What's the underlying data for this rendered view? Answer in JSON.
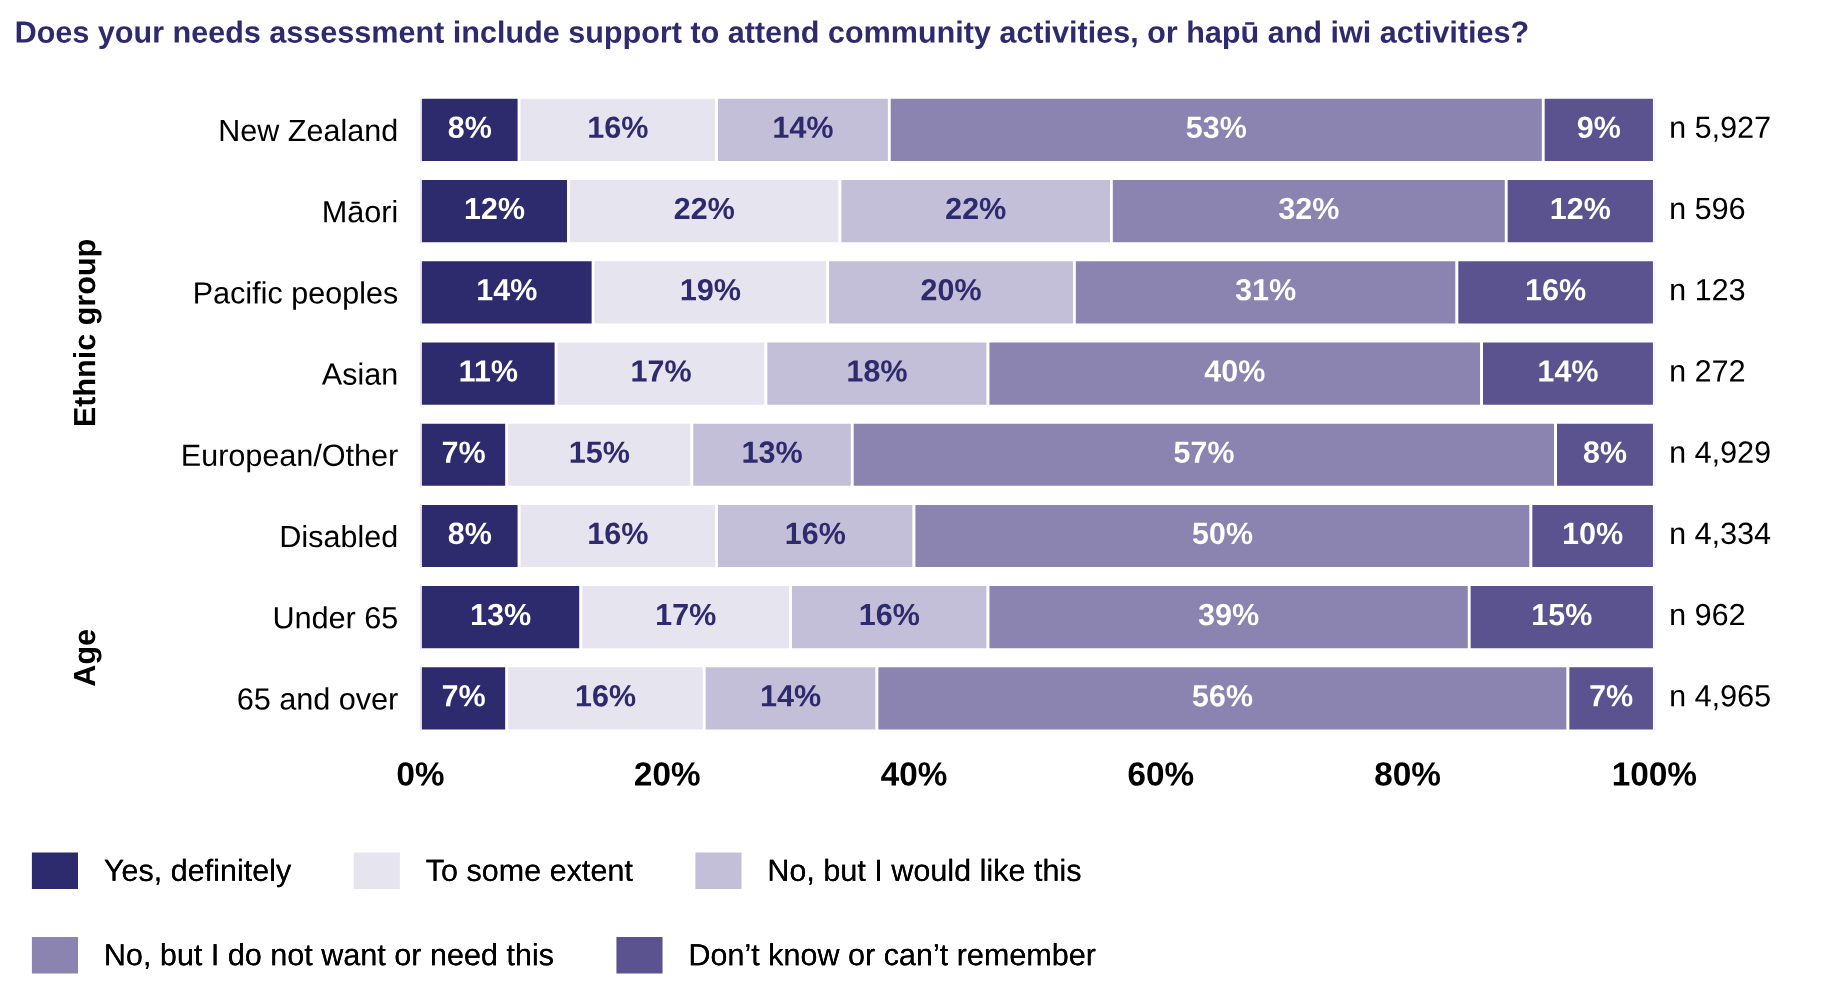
{
  "chart_data": {
    "type": "bar",
    "orientation": "horizontal",
    "stacked": true,
    "title": "Does your needs assessment include support to attend community activities, or hapū and iwi activities?",
    "categories": [
      "New Zealand",
      "Māori",
      "Pacific peoples",
      "Asian",
      "European/Other",
      "Disabled",
      "Under 65",
      "65 and over"
    ],
    "series": [
      {
        "name": "Yes, definitely",
        "color": "#2e2a6e",
        "values": [
          8,
          12,
          14,
          11,
          7,
          8,
          13,
          7
        ],
        "value_labels": [
          "8%",
          "12%",
          "14%",
          "11%",
          "7%",
          "8%",
          "13%",
          "7%"
        ]
      },
      {
        "name": "To some extent",
        "color": "#e6e4ef",
        "values": [
          16,
          22,
          19,
          17,
          15,
          16,
          17,
          16
        ],
        "value_labels": [
          "16%",
          "22%",
          "19%",
          "17%",
          "15%",
          "16%",
          "17%",
          "16%"
        ]
      },
      {
        "name": "No, but I would like this",
        "color": "#c3bfd8",
        "values": [
          14,
          22,
          20,
          18,
          13,
          16,
          16,
          14
        ],
        "value_labels": [
          "14%",
          "22%",
          "20%",
          "18%",
          "13%",
          "16%",
          "16%",
          "14%"
        ]
      },
      {
        "name": "No, but I do not want or need this",
        "color": "#8b84b0",
        "values": [
          53,
          32,
          31,
          40,
          57,
          50,
          39,
          56
        ],
        "value_labels": [
          "53%",
          "32%",
          "31%",
          "40%",
          "57%",
          "50%",
          "39%",
          "56%"
        ]
      },
      {
        "name": "Don’t know or can’t remember",
        "color": "#5b5290",
        "values": [
          9,
          12,
          16,
          14,
          8,
          10,
          15,
          7
        ],
        "value_labels": [
          "9%",
          "12%",
          "16%",
          "14%",
          "8%",
          "10%",
          "15%",
          "7%"
        ]
      }
    ],
    "xlim": [
      0,
      100
    ],
    "xticks": [
      {
        "value": 0,
        "label": "0%"
      },
      {
        "value": 20,
        "label": "20%"
      },
      {
        "value": 40,
        "label": "40%"
      },
      {
        "value": 60,
        "label": "60%"
      },
      {
        "value": 80,
        "label": "80%"
      },
      {
        "value": 100,
        "label": "100%"
      }
    ],
    "legend": "bottom",
    "grid": false,
    "annotations": [
      "Ethnic group",
      "Age",
      "n 5,927",
      "n 596",
      "n 123",
      "n 272",
      "n 4,929",
      "n 4,334",
      "n 962",
      "n 4,965"
    ]
  }
}
